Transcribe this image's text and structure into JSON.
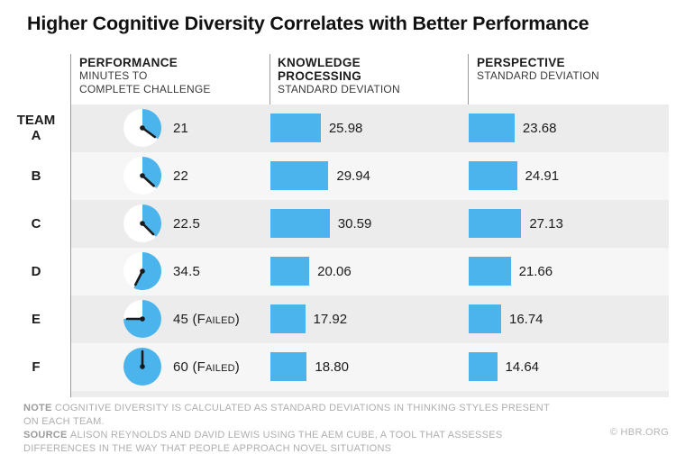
{
  "title": "Higher Cognitive Diversity Correlates with Better Performance",
  "columns": {
    "team_label": "TEAM",
    "performance": {
      "title": "PERFORMANCE",
      "subtitle_lines": [
        "MINUTES TO",
        "COMPLETE CHALLENGE"
      ]
    },
    "knowledge": {
      "title_lines": [
        "KNOWLEDGE",
        "PROCESSING"
      ],
      "subtitle": "STANDARD DEVIATION"
    },
    "perspective": {
      "title": "PERSPECTIVE",
      "subtitle": "STANDARD DEVIATION"
    }
  },
  "chart_data": {
    "type": "table",
    "title": "Higher Cognitive Diversity Correlates with Better Performance",
    "categories": [
      "A",
      "B",
      "C",
      "D",
      "E",
      "F"
    ],
    "series": [
      {
        "name": "Performance (minutes to complete challenge)",
        "unit": "minutes",
        "max": 60,
        "values": [
          21,
          22,
          22.5,
          34.5,
          45,
          60
        ],
        "labels": [
          "21",
          "22",
          "22.5",
          "34.5",
          "45 (Failed)",
          "60 (Failed)"
        ],
        "failed": [
          false,
          false,
          false,
          false,
          true,
          true
        ]
      },
      {
        "name": "Knowledge processing (standard deviation)",
        "values": [
          25.98,
          29.94,
          30.59,
          20.06,
          17.92,
          18.8
        ],
        "labels": [
          "25.98",
          "29.94",
          "30.59",
          "20.06",
          "17.92",
          "18.80"
        ]
      },
      {
        "name": "Perspective (standard deviation)",
        "values": [
          23.68,
          24.91,
          27.13,
          21.66,
          16.74,
          14.64
        ],
        "labels": [
          "23.68",
          "24.91",
          "27.13",
          "21.66",
          "16.74",
          "14.64"
        ]
      }
    ],
    "legend_position": "none",
    "grid": false
  },
  "footer": {
    "note_label": "NOTE",
    "note_text": "COGNITIVE DIVERSITY IS CALCULATED AS STANDARD DEVIATIONS IN THINKING STYLES PRESENT ON EACH TEAM.",
    "source_label": "SOURCE",
    "source_text": "ALISON REYNOLDS AND DAVID LEWIS USING THE AEM CUBE, A TOOL THAT ASSESSES DIFFERENCES IN THE WAY THAT PEOPLE APPROACH NOVEL SITUATIONS",
    "credit": "© HBR.ORG"
  },
  "colors": {
    "accent_blue": "#4cb4ec",
    "stripe_dark": "#ececec",
    "stripe_light": "#f6f6f6",
    "clock_face": "#ffffff",
    "clock_hand": "#1a1a1a"
  }
}
